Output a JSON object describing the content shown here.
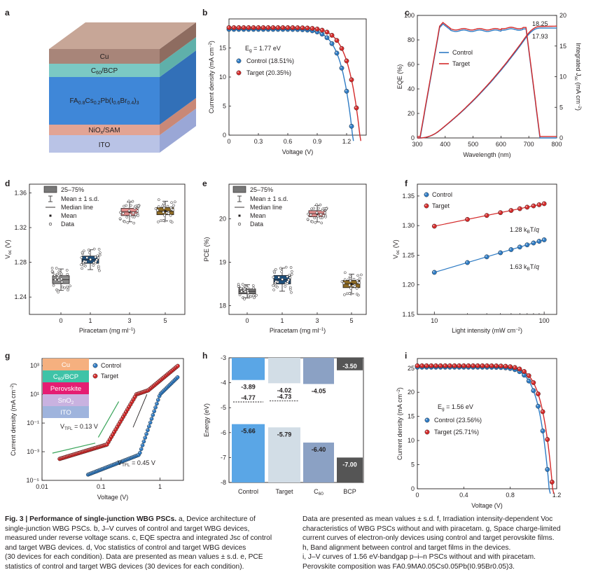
{
  "panel_letters": [
    "a",
    "b",
    "c",
    "d",
    "e",
    "f",
    "g",
    "h",
    "i"
  ],
  "panel_a": {
    "layers": [
      "Cu",
      "C60/BCP",
      "FA0.8Cs0.2Pb(I0.6Br0.4)3",
      "NiOx/SAM",
      "ITO"
    ]
  },
  "panel_g_layers": [
    "Cu",
    "C60/BCP",
    "Perovskite",
    "SnO2",
    "ITO"
  ],
  "colors": {
    "control": "#2e7bc4",
    "target": "#d42a2a"
  },
  "chart_data": [
    {
      "panel": "b",
      "type": "line",
      "xlabel": "Voltage (V)",
      "ylabel": "Current density (mA cm⁻²)",
      "xlim": [
        0,
        1.4
      ],
      "ylim": [
        0,
        20
      ],
      "xticks": [
        "0",
        "0.3",
        "0.6",
        "0.9",
        "1.2"
      ],
      "yticks": [
        "0",
        "5",
        "10",
        "15"
      ],
      "annotation": "Eg = 1.77 eV",
      "series": [
        {
          "name": "Control (18.51%)",
          "jsc": 18.2,
          "voc": 1.26
        },
        {
          "name": "Target (20.35%)",
          "jsc": 18.5,
          "voc": 1.335
        }
      ]
    },
    {
      "panel": "c",
      "type": "line",
      "xlabel": "Wavelength (nm)",
      "ylabel": "EQE (%)",
      "y2label": "Integrated Jsc (mA cm⁻²)",
      "xlim": [
        300,
        800
      ],
      "ylim": [
        0,
        100
      ],
      "y2lim": [
        0,
        20
      ],
      "xticks": [
        "300",
        "400",
        "500",
        "600",
        "700",
        "800"
      ],
      "yticks": [
        "0",
        "20",
        "40",
        "60",
        "80",
        "100"
      ],
      "y2ticks": [
        "0",
        "5",
        "10",
        "15",
        "20"
      ],
      "labels": [
        "18.25",
        "17.93"
      ],
      "series": [
        {
          "name": "Control"
        },
        {
          "name": "Target"
        }
      ]
    },
    {
      "panel": "d",
      "type": "box",
      "xlabel": "Piracetam (mg ml⁻¹)",
      "ylabel": "Voc (V)",
      "categories": [
        "0",
        "1",
        "3",
        "5"
      ],
      "ylim": [
        1.22,
        1.37
      ],
      "yticks": [
        "1.24",
        "1.28",
        "1.32",
        "1.36"
      ],
      "means": [
        1.26,
        1.283,
        1.338,
        1.339
      ],
      "legend": [
        "25–75%",
        "Mean ± 1 s.d.",
        "Median line",
        "Mean",
        "Data"
      ]
    },
    {
      "panel": "e",
      "type": "box",
      "xlabel": "Piracetam (mg ml⁻¹)",
      "ylabel": "PCE (%)",
      "categories": [
        "0",
        "1",
        "3",
        "5"
      ],
      "ylim": [
        17.8,
        20.8
      ],
      "yticks": [
        "18",
        "19",
        "20"
      ],
      "means": [
        18.33,
        18.6,
        20.12,
        18.5
      ],
      "legend": [
        "25–75%",
        "Mean ± 1 s.d.",
        "Median line",
        "Mean",
        "Data"
      ]
    },
    {
      "panel": "f",
      "type": "scatter",
      "xlabel": "Light intensity (mW cm⁻²)",
      "ylabel": "Voc (V)",
      "xticks": [
        "10",
        "100"
      ],
      "ylim": [
        1.15,
        1.37
      ],
      "yticks": [
        "1.15",
        "1.20",
        "1.25",
        "1.30",
        "1.35"
      ],
      "series": [
        {
          "name": "Control",
          "slope": "1.63 kBT/q",
          "voc_10": 1.221,
          "voc_100": 1.276
        },
        {
          "name": "Target",
          "slope": "1.28 kBT/q",
          "voc_10": 1.299,
          "voc_100": 1.337
        }
      ]
    },
    {
      "panel": "g",
      "type": "scatter",
      "xlabel": "Voltage (V)",
      "ylabel": "Current density (mA cm⁻²)",
      "xticks": [
        "0.01",
        "0.1",
        "1"
      ],
      "yticks": [
        "10³",
        "10¹",
        "10⁻¹",
        "10⁻³",
        "10⁻⁵"
      ],
      "annotations": [
        "VTFL = 0.13 V",
        "VTFL = 0.45 V"
      ],
      "series": [
        {
          "name": "Control"
        },
        {
          "name": "Target"
        }
      ]
    },
    {
      "panel": "h",
      "type": "bar",
      "ylabel": "Energy (eV)",
      "ylim": [
        -8,
        -3
      ],
      "yticks": [
        "-3",
        "-4",
        "-5",
        "-6",
        "-7",
        "-8"
      ],
      "categories": [
        "Control",
        "Target",
        "C60",
        "BCP"
      ],
      "cbm": [
        -3.89,
        -4.02,
        -4.05,
        -3.5
      ],
      "vbm": [
        -5.66,
        -5.79,
        -6.4,
        -7.0
      ],
      "fermi": [
        -4.77,
        -4.73
      ],
      "cbm_labels": [
        "-3.89",
        "-4.02",
        "-4.05",
        "-3.50"
      ],
      "vbm_labels": [
        "-5.66",
        "-5.79",
        "-6.40",
        "-7.00"
      ],
      "fermi_labels": [
        "-4.77",
        "-4.73"
      ]
    },
    {
      "panel": "i",
      "type": "line",
      "xlabel": "Voltage (V)",
      "ylabel": "Current density (mA cm⁻²)",
      "xlim": [
        0,
        1.2
      ],
      "ylim": [
        0,
        27
      ],
      "xticks": [
        "0",
        "0.4",
        "0.8",
        "1.2"
      ],
      "yticks": [
        "0",
        "5",
        "10",
        "15",
        "20",
        "25"
      ],
      "annotation": "Eg = 1.56 eV",
      "series": [
        {
          "name": "Control (23.56%)",
          "jsc": 25.2,
          "voc": 1.135
        },
        {
          "name": "Target (25.71%)",
          "jsc": 25.5,
          "voc": 1.165
        }
      ]
    }
  ],
  "caption_left": [
    "Fig. 3 | Performance of single-junction WBG PSCs. a, Device architecture of",
    "single-junction WBG PSCs. b, J–V curves of control and target WBG devices,",
    "measured under reverse voltage scans. c, EQE spectra and integrated Jsc of control",
    "and target WBG devices. d, Voc statistics of control and target WBG devices",
    "(30 devices for each condition). Data are presented as mean values ± s.d. e, PCE",
    "statistics of control and target WBG devices (30 devices for each condition)."
  ],
  "caption_right": [
    "Data are presented as mean values ± s.d. f, Irradiation intensity-dependent Voc",
    "characteristics of WBG PSCs without and with piracetam. g, Space charge-limited",
    "current curves of electron-only devices using control and target perovskite films.",
    "h, Band alignment between control and target films in the devices.",
    "i, J–V curves of 1.56 eV-bandgap p–i–n PSCs without and with piracetam.",
    "Perovskite composition was FA0.9MA0.05Cs0.05Pb(I0.95Br0.05)3."
  ]
}
